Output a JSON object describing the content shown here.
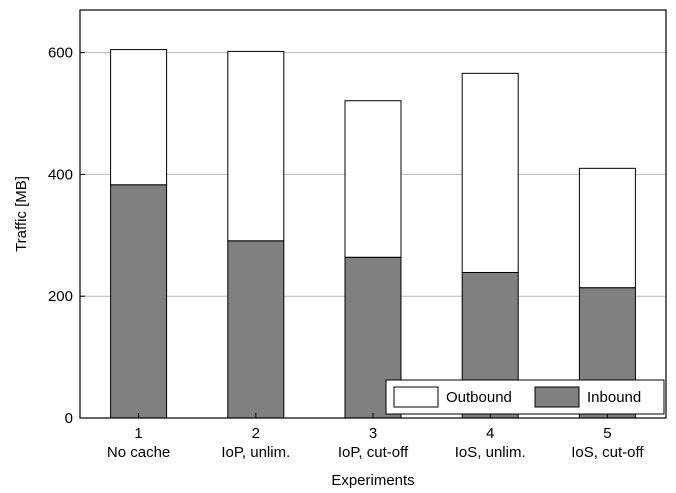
{
  "chart_data": {
    "type": "bar",
    "stacked": true,
    "categories": [
      "1",
      "2",
      "3",
      "4",
      "5"
    ],
    "category_sublabels": [
      "No cache",
      "IoP, unlim.",
      "IoP, cut-off",
      "IoS, unlim.",
      "IoS, cut-off"
    ],
    "series": [
      {
        "name": "Inbound",
        "values": [
          383,
          291,
          264,
          239,
          214
        ],
        "color": "#808080"
      },
      {
        "name": "Outbound",
        "values": [
          222,
          311,
          257,
          327,
          196
        ],
        "color": "#ffffff"
      }
    ],
    "totals": [
      605,
      602,
      521,
      566,
      410
    ],
    "xlabel": "Experiments",
    "ylabel": "Traffic [MB]",
    "ylim": [
      0,
      670
    ],
    "yticks": [
      0,
      200,
      400,
      600
    ],
    "grid": true,
    "legend_position": "bottom-right",
    "legend_order": [
      "Outbound",
      "Inbound"
    ]
  }
}
